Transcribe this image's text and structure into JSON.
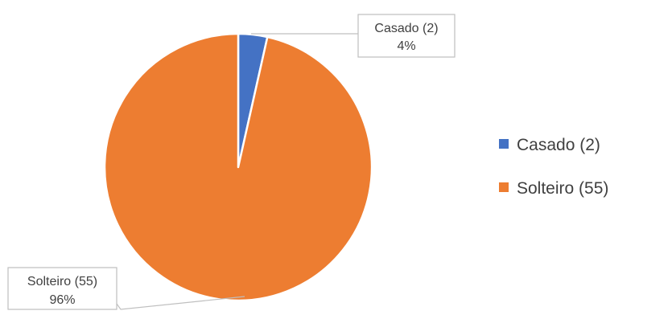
{
  "chart_data": {
    "type": "pie",
    "title": "",
    "series": [
      {
        "values": [
          2,
          55
        ],
        "categories": [
          "Casado (2)",
          "Solteiro (55)"
        ],
        "percent_labels": [
          "4%",
          "96%"
        ],
        "colors": [
          "#4472C4",
          "#ED7D31"
        ]
      }
    ],
    "legend": {
      "placement": "right",
      "entries": [
        "Casado (2)",
        "Solteiro (55)"
      ]
    },
    "data_labels": [
      {
        "text": "Casado (2)",
        "percent": "4%"
      },
      {
        "text": "Solteiro (55)",
        "percent": "96%"
      }
    ]
  }
}
